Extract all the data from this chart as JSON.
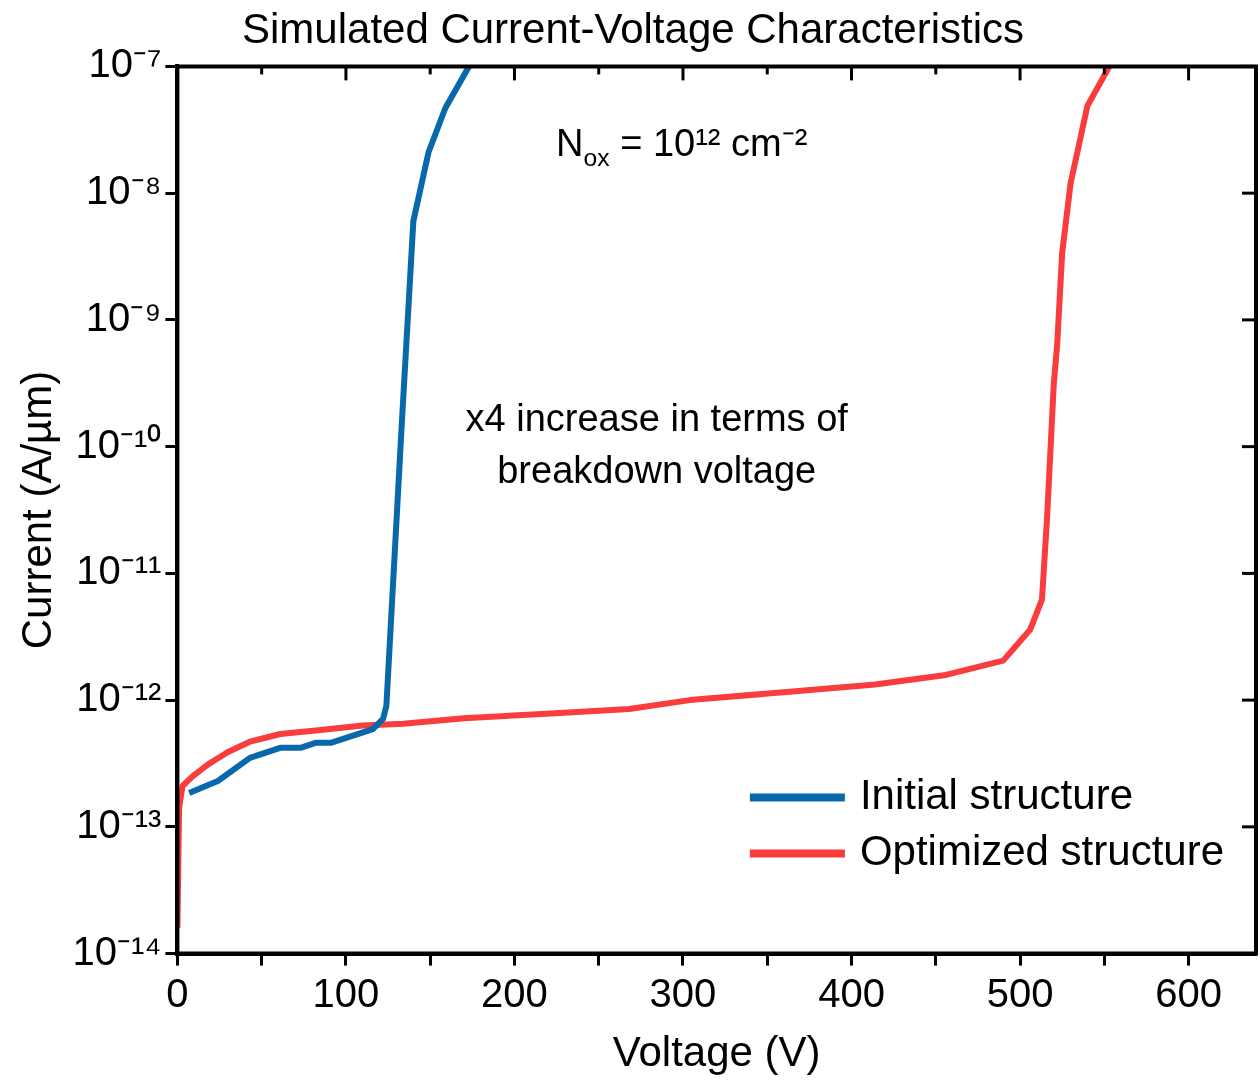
{
  "chart_data": {
    "type": "line",
    "title": "Simulated Current-Voltage Characteristics",
    "xlabel": "Voltage (V)",
    "ylabel": "Current (A/µm)",
    "annotations": [
      "N$_{ox}$ = 10¹² cm⁻²",
      "x4 increase in terms of breakdown voltage"
    ],
    "series": [
      {
        "name": "Initial structure",
        "color": "#0868ac",
        "x": [
          7,
          24,
          43,
          61,
          73,
          82,
          91,
          116,
          122,
          124,
          133,
          140,
          149,
          159,
          173
        ],
        "values": [
          1.85e-13,
          2.3e-13,
          3.5e-13,
          4.2e-13,
          4.2e-13,
          4.6e-13,
          4.6e-13,
          5.9e-13,
          7.1e-13,
          9e-13,
          1.4e-10,
          6e-09,
          2.1e-08,
          4.7e-08,
          1e-07
        ]
      },
      {
        "name": "Optimized structure",
        "color": "#f93c3c",
        "x": [
          0,
          1,
          3,
          9,
          18,
          30,
          43,
          61,
          85,
          110,
          134,
          170,
          219,
          268,
          304,
          365,
          414,
          456,
          490,
          506,
          513,
          516,
          520,
          522,
          525,
          530,
          540,
          553
        ],
        "values": [
          1.6e-14,
          1.4e-13,
          2.1e-13,
          2.5e-13,
          3.1e-13,
          3.9e-13,
          4.7e-13,
          5.4e-13,
          5.8e-13,
          6.3e-13,
          6.5e-13,
          7.2e-13,
          7.8e-13,
          8.5e-13,
          1e-12,
          1.17e-12,
          1.33e-12,
          1.58e-12,
          2.05e-12,
          3.6e-12,
          6.2e-12,
          2.7e-11,
          3.1e-10,
          6.3e-10,
          3.4e-09,
          1.2e-08,
          4.9e-08,
          1e-07
        ]
      }
    ],
    "xlim": [
      0,
      640
    ],
    "xticks": [
      0,
      {
        "value": 50,
        "label": null
      },
      100,
      {
        "value": 150,
        "label": null
      },
      200,
      {
        "value": 250,
        "label": null
      },
      300,
      {
        "value": 350,
        "label": null
      },
      400,
      {
        "value": 450,
        "label": null
      },
      500,
      {
        "value": 550,
        "label": null
      },
      600
    ],
    "ylim": [
      1e-14,
      1e-07
    ],
    "yticks": [
      {
        "value": 1e-14,
        "label": "10⁻¹⁴"
      },
      {
        "value": 1e-13,
        "label": "10⁻¹³"
      },
      {
        "value": 1e-12,
        "label": "10⁻¹²"
      },
      {
        "value": 1e-11,
        "label": "10⁻¹¹"
      },
      {
        "value": 1e-10,
        "label": "10⁻¹⁰"
      },
      {
        "value": 1e-09,
        "label": "10⁻⁹"
      },
      {
        "value": 1e-08,
        "label": "10⁻⁸"
      },
      {
        "value": 1e-07,
        "label": "10⁻⁷"
      }
    ],
    "log": "y",
    "grid": false,
    "legend": "bottom right",
    "marker": "none",
    "line_style": "solid"
  }
}
